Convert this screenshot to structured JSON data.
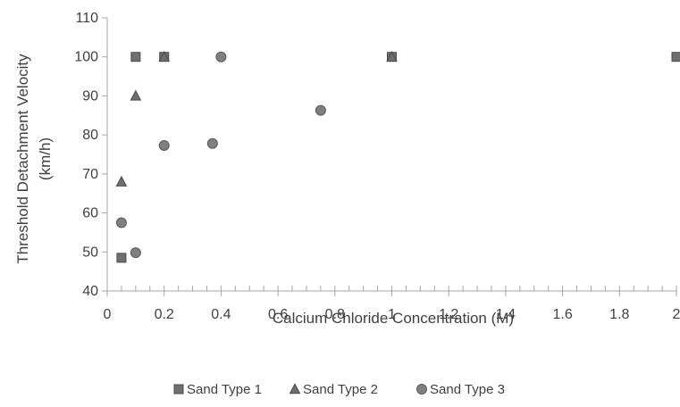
{
  "chart_data": {
    "type": "scatter",
    "title": "",
    "xlabel": "Calcium Chloride Concentration (M)",
    "ylabel_lines": [
      "Threshold Detachment Velocity",
      "(km/h)"
    ],
    "xlim": [
      0,
      2
    ],
    "ylim": [
      40,
      110
    ],
    "x_ticks": [
      0,
      0.2,
      0.4,
      0.6,
      0.8,
      1,
      1.2,
      1.4,
      1.6,
      1.8,
      2
    ],
    "x_tick_labels": [
      "0",
      "0.2",
      "0.4",
      "0.6",
      "0.8",
      "1",
      "1.2",
      "1.4",
      "1.6",
      "1.8",
      "2"
    ],
    "y_ticks": [
      40,
      50,
      60,
      70,
      80,
      90,
      100,
      110
    ],
    "y_tick_labels": [
      "40",
      "50",
      "60",
      "70",
      "80",
      "90",
      "100",
      "110"
    ],
    "grid": false,
    "legend_position": "bottom",
    "series": [
      {
        "name": "Sand Type 1",
        "marker": "square",
        "color": "#6f6f6f",
        "points": [
          [
            0.05,
            48.5
          ],
          [
            0.1,
            100
          ],
          [
            0.2,
            100
          ],
          [
            1,
            100
          ],
          [
            2,
            100
          ]
        ]
      },
      {
        "name": "Sand Type 2",
        "marker": "triangle",
        "color": "#6f6f6f",
        "points": [
          [
            0.05,
            68
          ],
          [
            0.1,
            90
          ],
          [
            0.2,
            100
          ],
          [
            1,
            100
          ]
        ]
      },
      {
        "name": "Sand Type 3",
        "marker": "circle",
        "color": "#7f7f7f",
        "points": [
          [
            0.05,
            57.5
          ],
          [
            0.1,
            49.8
          ],
          [
            0.2,
            77.3
          ],
          [
            0.37,
            77.8
          ],
          [
            0.4,
            100
          ],
          [
            0.75,
            86.3
          ]
        ]
      }
    ]
  }
}
